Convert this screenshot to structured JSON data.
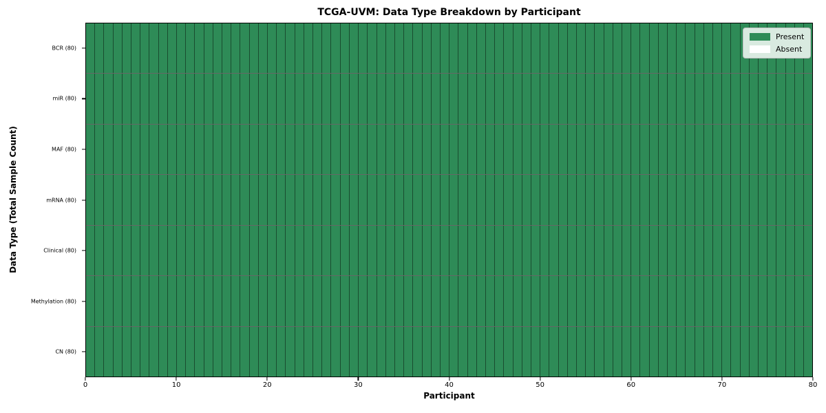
{
  "figure": {
    "title": "TCGA-UVM: Data Type Breakdown by Participant",
    "xlabel": "Participant",
    "ylabel": "Data Type (Total Sample Count)"
  },
  "legend": {
    "position": "upper right",
    "items": [
      {
        "label": "Present",
        "color": "#2e8b57"
      },
      {
        "label": "Absent",
        "color": "#ffffff"
      }
    ]
  },
  "chart_data": {
    "type": "heatmap",
    "title": "TCGA-UVM: Data Type Breakdown by Participant",
    "xlabel": "Participant",
    "ylabel": "Data Type (Total Sample Count)",
    "n_participants": 80,
    "xlim": [
      0,
      80
    ],
    "x_ticks": [
      0,
      10,
      20,
      30,
      40,
      50,
      60,
      70,
      80
    ],
    "rows": [
      {
        "label": "BCR (80)",
        "present_count": 80,
        "absent_count": 0
      },
      {
        "label": "miR (80)",
        "present_count": 80,
        "absent_count": 0
      },
      {
        "label": "MAF (80)",
        "present_count": 80,
        "absent_count": 0
      },
      {
        "label": "mRNA (80)",
        "present_count": 80,
        "absent_count": 0
      },
      {
        "label": "Clinical (80)",
        "present_count": 80,
        "absent_count": 0
      },
      {
        "label": "Methylation (80)",
        "present_count": 80,
        "absent_count": 0
      },
      {
        "label": "CN (80)",
        "present_count": 80,
        "absent_count": 0
      }
    ],
    "cell_colors": {
      "present": "#2e8b57",
      "absent": "#ffffff"
    },
    "legend_entries": [
      "Present",
      "Absent"
    ],
    "legend_position": "upper right",
    "grid": "black cell edges, all cells present"
  }
}
